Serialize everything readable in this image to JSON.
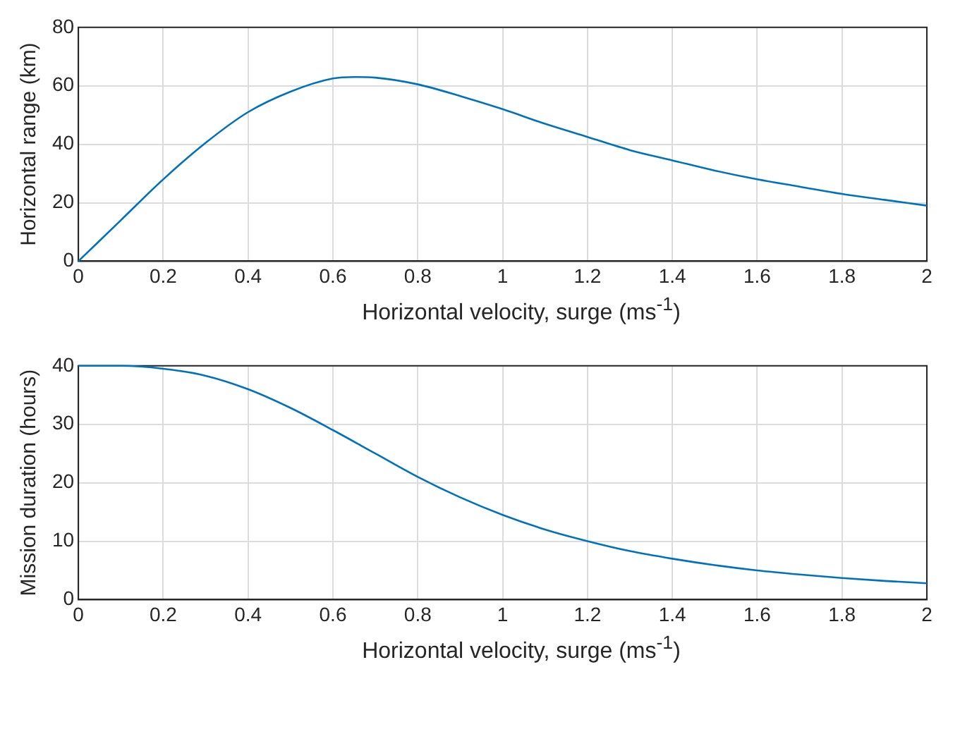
{
  "chart_data": [
    {
      "type": "line",
      "xlabel": "Horizontal velocity, surge (ms$^{-1}$)",
      "ylabel": "Horizontal range (km)",
      "xlim": [
        0,
        2
      ],
      "xticks": [
        0,
        0.2,
        0.4,
        0.6,
        0.8,
        1,
        1.2,
        1.4,
        1.6,
        1.8,
        2
      ],
      "ylim": [
        0,
        80
      ],
      "yticks": [
        0,
        20,
        40,
        60,
        80
      ],
      "grid": true,
      "legend": false,
      "marker": "none",
      "line_style": "solid",
      "series": [
        {
          "color": "#0072bd",
          "x": [
            0,
            0.1,
            0.2,
            0.3,
            0.4,
            0.5,
            0.6,
            0.65,
            0.7,
            0.8,
            0.9,
            1,
            1.1,
            1.2,
            1.3,
            1.4,
            1.5,
            1.6,
            1.7,
            1.8,
            1.9,
            2
          ],
          "values": [
            0,
            14,
            28,
            40.5,
            51,
            58,
            62.5,
            63,
            62.8,
            60.5,
            56.5,
            52,
            47,
            42.5,
            38,
            34.5,
            31,
            28,
            25.5,
            23,
            21,
            19
          ]
        }
      ]
    },
    {
      "type": "line",
      "xlabel": "Horizontal velocity, surge (ms$^{-1}$)",
      "ylabel": "Mission duration (hours)",
      "xlim": [
        0,
        2
      ],
      "xticks": [
        0,
        0.2,
        0.4,
        0.6,
        0.8,
        1,
        1.2,
        1.4,
        1.6,
        1.8,
        2
      ],
      "ylim": [
        0,
        40
      ],
      "yticks": [
        0,
        10,
        20,
        30,
        40
      ],
      "grid": true,
      "legend": false,
      "marker": "none",
      "line_style": "solid",
      "series": [
        {
          "color": "#0072bd",
          "x": [
            0,
            0.1,
            0.2,
            0.3,
            0.4,
            0.5,
            0.6,
            0.7,
            0.8,
            0.9,
            1,
            1.1,
            1.2,
            1.3,
            1.4,
            1.5,
            1.6,
            1.7,
            1.8,
            1.9,
            2
          ],
          "values": [
            40,
            40,
            39.5,
            38.3,
            36,
            32.8,
            29,
            25,
            21,
            17.5,
            14.5,
            12,
            10,
            8.3,
            7,
            5.9,
            5,
            4.3,
            3.7,
            3.2,
            2.8
          ]
        }
      ]
    }
  ]
}
